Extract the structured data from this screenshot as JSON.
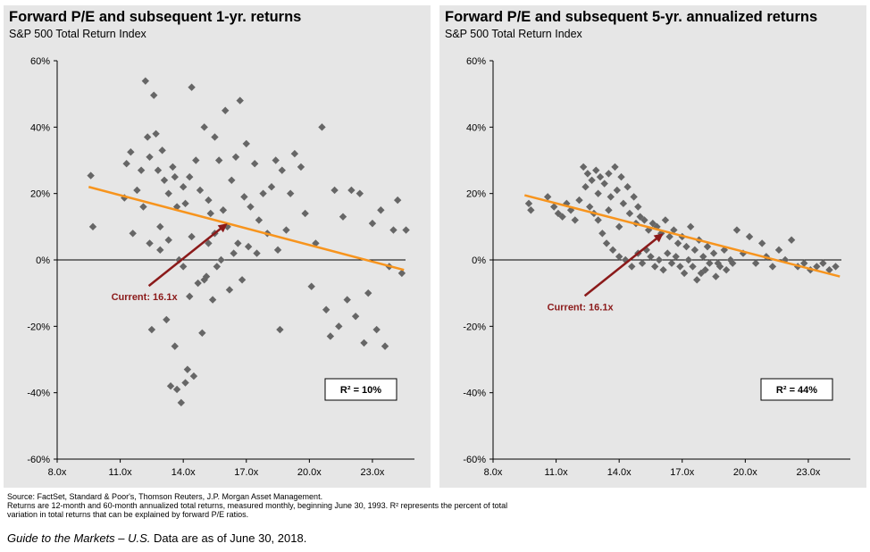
{
  "charts": [
    {
      "title": "Forward P/E and subsequent 1-yr. returns",
      "subtitle": "S&P 500 Total Return Index",
      "annotation": "Current: 16.1x",
      "r_squared_label": "R² = 10%"
    },
    {
      "title": "Forward P/E and subsequent 5-yr. annualized returns",
      "subtitle": "S&P 500 Total Return Index",
      "annotation": "Current: 16.1x",
      "r_squared_label": "R² = 44%"
    }
  ],
  "colors": {
    "points": "#666666",
    "trendline": "#f7941d",
    "arrow": "#8b1a1a",
    "panel": "#e6e6e6"
  },
  "chart_data": [
    {
      "type": "scatter",
      "title": "Forward P/E and subsequent 1-yr. returns",
      "x_ticks": [
        8,
        11,
        14,
        17,
        20,
        23
      ],
      "x_tick_labels": [
        "8.0x",
        "11.0x",
        "14.0x",
        "17.0x",
        "20.0x",
        "23.0x"
      ],
      "y_ticks": [
        -60,
        -40,
        -20,
        0,
        20,
        40,
        60
      ],
      "y_tick_labels": [
        "-60%",
        "-40%",
        "-20%",
        "0%",
        "20%",
        "40%",
        "60%"
      ],
      "xlim": [
        8,
        25
      ],
      "ylim": [
        -60,
        60
      ],
      "trendline": {
        "x": [
          9.5,
          24.5
        ],
        "y": [
          22,
          -3
        ]
      },
      "current_pe": 16.1,
      "current_point_y": 11,
      "r_squared": 10,
      "points": [
        [
          9.6,
          25.4
        ],
        [
          9.7,
          10
        ],
        [
          11.2,
          18.7
        ],
        [
          11.3,
          29
        ],
        [
          11.5,
          32.5
        ],
        [
          11.8,
          21
        ],
        [
          12.0,
          27
        ],
        [
          12.2,
          53.9
        ],
        [
          12.3,
          37
        ],
        [
          12.4,
          31
        ],
        [
          12.6,
          49.6
        ],
        [
          12.7,
          38
        ],
        [
          12.8,
          27
        ],
        [
          13.0,
          33
        ],
        [
          13.1,
          24
        ],
        [
          13.3,
          20
        ],
        [
          13.5,
          28
        ],
        [
          13.6,
          25
        ],
        [
          13.7,
          16
        ],
        [
          14.0,
          22
        ],
        [
          14.1,
          17
        ],
        [
          14.3,
          25
        ],
        [
          14.4,
          52
        ],
        [
          14.6,
          30
        ],
        [
          14.8,
          21
        ],
        [
          15.0,
          40
        ],
        [
          15.2,
          18
        ],
        [
          15.3,
          14
        ],
        [
          15.5,
          37
        ],
        [
          15.7,
          30
        ],
        [
          15.9,
          15
        ],
        [
          16.0,
          45
        ],
        [
          16.1,
          10
        ],
        [
          16.3,
          24
        ],
        [
          16.5,
          31
        ],
        [
          16.7,
          48
        ],
        [
          16.9,
          19
        ],
        [
          17.0,
          35
        ],
        [
          17.2,
          16
        ],
        [
          17.4,
          29
        ],
        [
          17.6,
          12
        ],
        [
          17.8,
          20
        ],
        [
          18.0,
          8
        ],
        [
          18.2,
          22
        ],
        [
          18.4,
          30
        ],
        [
          18.5,
          3
        ],
        [
          18.7,
          27
        ],
        [
          18.9,
          9
        ],
        [
          19.1,
          20
        ],
        [
          19.3,
          32
        ],
        [
          19.6,
          28
        ],
        [
          19.8,
          14
        ],
        [
          20.1,
          -8
        ],
        [
          20.3,
          5
        ],
        [
          20.6,
          40
        ],
        [
          20.8,
          -15
        ],
        [
          21.0,
          -23
        ],
        [
          21.2,
          21
        ],
        [
          21.4,
          -20
        ],
        [
          21.6,
          13
        ],
        [
          21.8,
          -12
        ],
        [
          22.0,
          21
        ],
        [
          22.2,
          -17
        ],
        [
          22.4,
          20
        ],
        [
          22.6,
          -25
        ],
        [
          22.8,
          -10
        ],
        [
          23.0,
          11
        ],
        [
          23.2,
          -21
        ],
        [
          23.4,
          15
        ],
        [
          23.6,
          -26
        ],
        [
          23.8,
          -2
        ],
        [
          24.0,
          9
        ],
        [
          24.2,
          18
        ],
        [
          24.4,
          -4
        ],
        [
          24.6,
          9
        ],
        [
          11.6,
          8
        ],
        [
          12.1,
          16
        ],
        [
          12.5,
          -21
        ],
        [
          12.9,
          10
        ],
        [
          13.2,
          -18
        ],
        [
          13.4,
          -38
        ],
        [
          13.6,
          -26
        ],
        [
          13.7,
          -39
        ],
        [
          13.9,
          -43
        ],
        [
          14.1,
          -37
        ],
        [
          14.2,
          -33
        ],
        [
          14.3,
          -11
        ],
        [
          14.5,
          -35
        ],
        [
          14.9,
          -22
        ],
        [
          15.1,
          -5
        ],
        [
          15.4,
          -12
        ],
        [
          15.6,
          -2
        ],
        [
          15.8,
          0
        ],
        [
          16.2,
          -9
        ],
        [
          16.4,
          2
        ],
        [
          16.6,
          5
        ],
        [
          16.8,
          -6
        ],
        [
          17.1,
          4
        ],
        [
          17.5,
          2
        ],
        [
          18.6,
          -21
        ],
        [
          12.4,
          5
        ],
        [
          12.9,
          3
        ],
        [
          13.3,
          6
        ],
        [
          13.8,
          0
        ],
        [
          14.0,
          -2
        ],
        [
          14.4,
          7
        ],
        [
          14.7,
          -7
        ],
        [
          15.0,
          -6
        ],
        [
          15.2,
          5
        ],
        [
          15.5,
          8
        ]
      ]
    },
    {
      "type": "scatter",
      "title": "Forward P/E and subsequent 5-yr. annualized returns",
      "x_ticks": [
        8,
        11,
        14,
        17,
        20,
        23
      ],
      "x_tick_labels": [
        "8.0x",
        "11.0x",
        "14.0x",
        "17.0x",
        "20.0x",
        "23.0x"
      ],
      "y_ticks": [
        -60,
        -40,
        -20,
        0,
        20,
        40,
        60
      ],
      "y_tick_labels": [
        "-60%",
        "-40%",
        "-20%",
        "0%",
        "20%",
        "40%",
        "60%"
      ],
      "xlim": [
        8,
        25
      ],
      "ylim": [
        -60,
        60
      ],
      "trendline": {
        "x": [
          9.5,
          24.5
        ],
        "y": [
          19.5,
          -5
        ]
      },
      "current_pe": 16.1,
      "current_point_y": 8,
      "r_squared": 44,
      "points": [
        [
          9.7,
          17
        ],
        [
          9.8,
          15
        ],
        [
          10.6,
          19
        ],
        [
          10.9,
          16
        ],
        [
          11.1,
          14
        ],
        [
          11.3,
          13
        ],
        [
          11.5,
          17
        ],
        [
          11.7,
          15
        ],
        [
          11.9,
          12
        ],
        [
          12.1,
          18
        ],
        [
          12.3,
          28
        ],
        [
          12.4,
          22
        ],
        [
          12.5,
          26
        ],
        [
          12.7,
          24
        ],
        [
          12.9,
          27
        ],
        [
          13.0,
          20
        ],
        [
          13.1,
          25
        ],
        [
          13.3,
          23
        ],
        [
          13.5,
          26
        ],
        [
          13.6,
          19
        ],
        [
          13.8,
          28
        ],
        [
          13.9,
          21
        ],
        [
          14.1,
          25
        ],
        [
          14.2,
          17
        ],
        [
          14.4,
          22
        ],
        [
          14.5,
          14
        ],
        [
          14.7,
          19
        ],
        [
          14.8,
          11
        ],
        [
          14.9,
          16
        ],
        [
          15.0,
          13
        ],
        [
          15.2,
          12
        ],
        [
          15.4,
          9
        ],
        [
          15.6,
          11
        ],
        [
          15.8,
          10
        ],
        [
          16.0,
          8
        ],
        [
          16.2,
          12
        ],
        [
          16.4,
          7
        ],
        [
          16.6,
          9
        ],
        [
          16.8,
          5
        ],
        [
          17.0,
          7
        ],
        [
          17.2,
          4
        ],
        [
          17.4,
          10
        ],
        [
          17.6,
          3
        ],
        [
          17.8,
          6
        ],
        [
          18.0,
          1
        ],
        [
          18.2,
          4
        ],
        [
          18.5,
          2
        ],
        [
          18.7,
          -1
        ],
        [
          19.0,
          3
        ],
        [
          19.3,
          0
        ],
        [
          19.6,
          9
        ],
        [
          19.9,
          2
        ],
        [
          20.2,
          7
        ],
        [
          20.5,
          -1
        ],
        [
          20.8,
          5
        ],
        [
          21.0,
          1
        ],
        [
          21.3,
          -2
        ],
        [
          21.6,
          3
        ],
        [
          21.9,
          0
        ],
        [
          22.2,
          6
        ],
        [
          22.5,
          -2
        ],
        [
          22.8,
          -1
        ],
        [
          23.1,
          -3
        ],
        [
          23.4,
          -2
        ],
        [
          23.7,
          -1
        ],
        [
          24.0,
          -3
        ],
        [
          24.3,
          -2
        ],
        [
          13.2,
          8
        ],
        [
          13.4,
          5
        ],
        [
          13.7,
          3
        ],
        [
          14.0,
          1
        ],
        [
          14.3,
          0
        ],
        [
          14.6,
          -2
        ],
        [
          14.9,
          2
        ],
        [
          15.1,
          -1
        ],
        [
          15.3,
          3
        ],
        [
          15.5,
          1
        ],
        [
          15.7,
          -2
        ],
        [
          15.9,
          0
        ],
        [
          16.1,
          -3
        ],
        [
          16.3,
          2
        ],
        [
          16.5,
          -1
        ],
        [
          16.7,
          1
        ],
        [
          16.9,
          -2
        ],
        [
          17.1,
          -4
        ],
        [
          17.3,
          0
        ],
        [
          17.5,
          -2
        ],
        [
          17.7,
          -6
        ],
        [
          17.9,
          -4
        ],
        [
          18.1,
          -3
        ],
        [
          18.3,
          -1
        ],
        [
          18.6,
          -5
        ],
        [
          18.8,
          -2
        ],
        [
          19.1,
          -3
        ],
        [
          19.4,
          -1
        ],
        [
          12.6,
          16
        ],
        [
          12.8,
          14
        ],
        [
          13.0,
          12
        ],
        [
          13.5,
          15
        ],
        [
          14.0,
          10
        ]
      ]
    }
  ],
  "source": {
    "line1": "Source: FactSet, Standard & Poor's, Thomson Reuters, J.P. Morgan Asset Management.",
    "line2": "Returns are 12-month and 60-month annualized total returns, measured monthly, beginning June 30, 1993. R² represents the percent of total",
    "line3": "variation in total returns that can be explained by forward P/E ratios."
  },
  "footer": {
    "italic": "Guide to the Markets – U.S.",
    "rest": " Data are as of June 30, 2018."
  }
}
